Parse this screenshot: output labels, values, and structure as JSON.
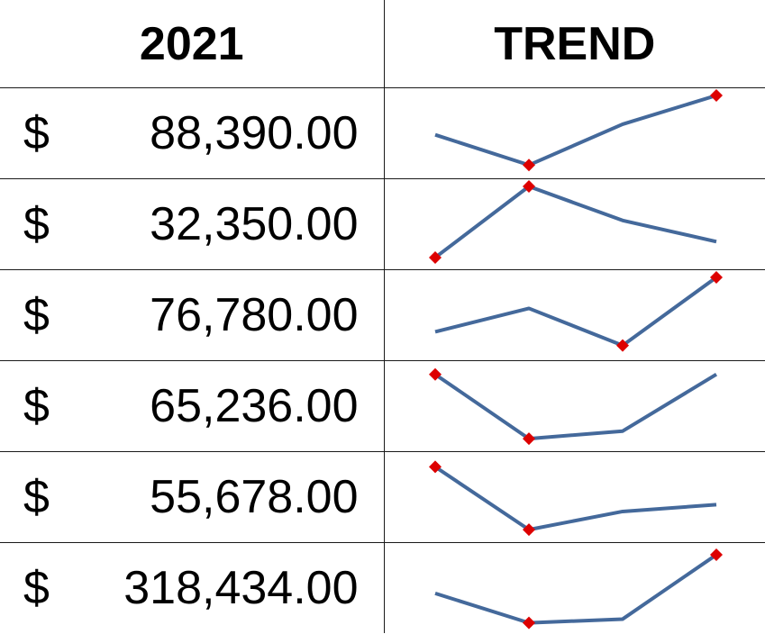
{
  "header": {
    "year_label": "2021",
    "trend_label": "TREND"
  },
  "colors": {
    "line": "#44699B",
    "marker": "#DD0000",
    "grid": "#1A1A1A"
  },
  "rows": [
    {
      "currency": "$",
      "amount": "88,390.00",
      "trend": [
        0.48,
        0.08,
        0.62,
        1.0
      ],
      "markers": [
        1,
        3
      ]
    },
    {
      "currency": "$",
      "amount": "32,350.00",
      "trend": [
        0.06,
        1.0,
        0.55,
        0.27
      ],
      "markers": [
        0,
        1
      ]
    },
    {
      "currency": "$",
      "amount": "76,780.00",
      "trend": [
        0.28,
        0.59,
        0.1,
        1.0
      ],
      "markers": [
        2,
        3
      ]
    },
    {
      "currency": "$",
      "amount": "65,236.00",
      "trend": [
        0.92,
        0.07,
        0.17,
        0.92
      ],
      "markers": [
        0,
        1
      ]
    },
    {
      "currency": "$",
      "amount": "55,678.00",
      "trend": [
        0.9,
        0.07,
        0.31,
        0.4
      ],
      "markers": [
        0,
        1
      ]
    },
    {
      "currency": "$",
      "amount": "318,434.00",
      "trend": [
        0.43,
        0.04,
        0.09,
        0.94
      ],
      "markers": [
        1,
        3
      ]
    }
  ]
}
